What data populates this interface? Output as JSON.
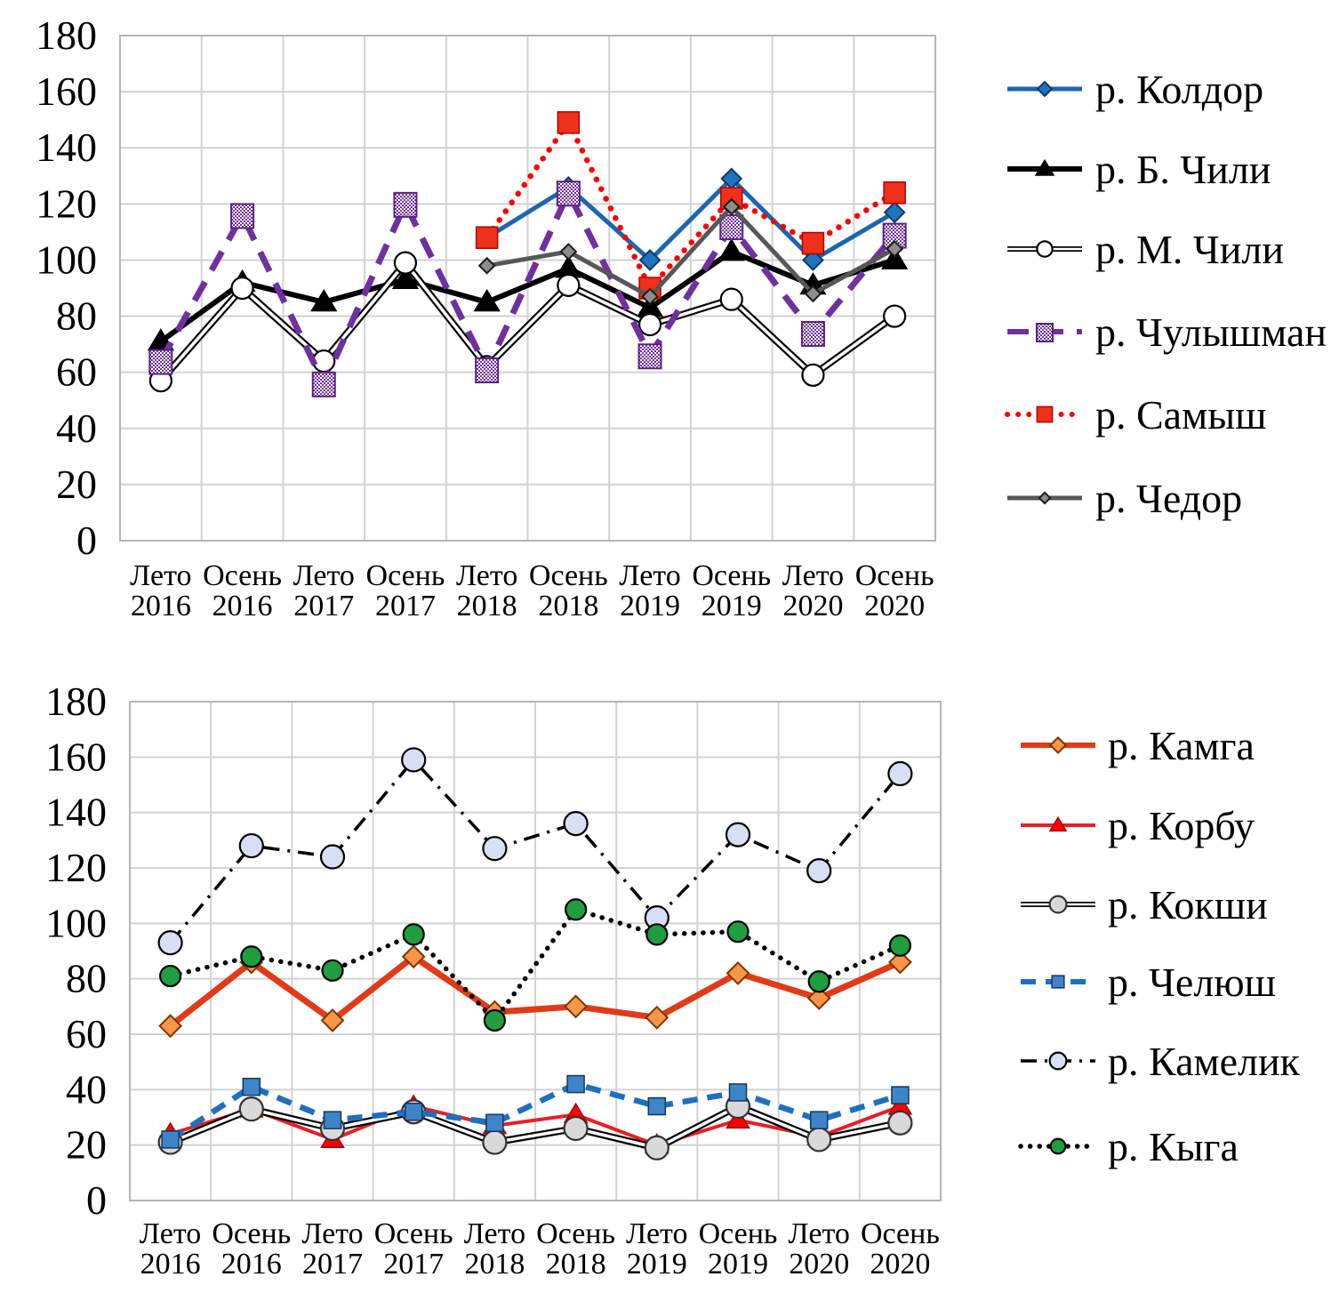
{
  "figure": {
    "background": "#FFFFFF",
    "text_color": "#000000",
    "grid_color": "#D2D2D2",
    "axis_color": "#B5B5B5"
  },
  "chart_data": [
    {
      "type": "line",
      "title": "",
      "xlabel": "",
      "ylabel": "",
      "ylim": [
        0,
        180
      ],
      "ytick_step": 20,
      "yticks": [
        "0",
        "20",
        "40",
        "60",
        "80",
        "100",
        "120",
        "140",
        "160",
        "180"
      ],
      "grid": true,
      "legend_position": "right",
      "categories": [
        {
          "season": "Лето",
          "year": "2016"
        },
        {
          "season": "Осень",
          "year": "2016"
        },
        {
          "season": "Лето",
          "year": "2017"
        },
        {
          "season": "Осень",
          "year": "2017"
        },
        {
          "season": "Лето",
          "year": "2018"
        },
        {
          "season": "Осень",
          "year": "2018"
        },
        {
          "season": "Лето",
          "year": "2019"
        },
        {
          "season": "Осень",
          "year": "2019"
        },
        {
          "season": "Лето",
          "year": "2020"
        },
        {
          "season": "Осень",
          "year": "2020"
        }
      ],
      "series": [
        {
          "name": "р. Колдор",
          "color": "#1A66B3",
          "line_style": "solid",
          "line_width": 5,
          "marker": "diamond",
          "marker_fill": "#1F73C0",
          "marker_edge": "#0D3A66",
          "marker_size": 22,
          "values": [
            null,
            null,
            null,
            null,
            108,
            126,
            100,
            129,
            100,
            117
          ]
        },
        {
          "name": "р. Б. Чили",
          "color": "#000000",
          "line_style": "solid",
          "line_width": 6,
          "marker": "triangle",
          "marker_fill": "#000000",
          "marker_edge": "#000000",
          "marker_size": 23,
          "values": [
            71,
            92,
            85,
            93,
            85,
            97,
            83,
            103,
            91,
            100
          ]
        },
        {
          "name": "р. М. Чили",
          "color": "#000000",
          "line_style": "double",
          "line_width": 8,
          "marker": "circle",
          "marker_fill": "#FFFFFF",
          "marker_edge": "#000000",
          "marker_size": 24,
          "values": [
            57,
            90,
            64,
            99,
            62,
            91,
            77,
            86,
            59,
            80
          ]
        },
        {
          "name": "р. Чулышман",
          "color": "#7030A0",
          "line_style": "dashed-lg",
          "line_width": 7,
          "marker": "square-pattern",
          "marker_fill": "#7030A0",
          "marker_edge": "#5B2182",
          "marker_size": 25,
          "values": [
            64,
            116,
            56,
            120,
            61,
            124,
            66,
            112,
            74,
            109
          ]
        },
        {
          "name": "р. Самыш",
          "color": "#FF0000",
          "line_style": "dotted-round",
          "line_width": 6.5,
          "marker": "square",
          "marker_fill": "#EE3118",
          "marker_edge": "#B30000",
          "marker_size": 24,
          "values": [
            null,
            null,
            null,
            null,
            108,
            149,
            90,
            122,
            106,
            124
          ]
        },
        {
          "name": "р. Чедор",
          "color": "#575757",
          "line_style": "solid",
          "line_width": 5,
          "marker": "diamond",
          "marker_fill": "#8C8C8C",
          "marker_edge": "#1A1A1A",
          "marker_size": 17,
          "values": [
            null,
            null,
            null,
            null,
            98,
            103,
            87,
            119,
            88,
            104
          ]
        }
      ]
    },
    {
      "type": "line",
      "title": "",
      "xlabel": "",
      "ylabel": "",
      "ylim": [
        0,
        180
      ],
      "ytick_step": 20,
      "yticks": [
        "0",
        "20",
        "40",
        "60",
        "80",
        "100",
        "120",
        "140",
        "160",
        "180"
      ],
      "grid": true,
      "legend_position": "right",
      "categories": [
        {
          "season": "Лето",
          "year": "2016"
        },
        {
          "season": "Осень",
          "year": "2016"
        },
        {
          "season": "Лето",
          "year": "2017"
        },
        {
          "season": "Осень",
          "year": "2017"
        },
        {
          "season": "Лето",
          "year": "2018"
        },
        {
          "season": "Осень",
          "year": "2018"
        },
        {
          "season": "Лето",
          "year": "2019"
        },
        {
          "season": "Осень",
          "year": "2019"
        },
        {
          "season": "Лето",
          "year": "2020"
        },
        {
          "season": "Осень",
          "year": "2020"
        }
      ],
      "series": [
        {
          "name": "р. Камга",
          "color": "#E23A17",
          "line_style": "solid",
          "line_width": 7,
          "marker": "diamond",
          "marker_fill": "#F79646",
          "marker_edge": "#7F3300",
          "marker_size": 24,
          "values": [
            63,
            86,
            65,
            88,
            68,
            70,
            66,
            82,
            73,
            86
          ]
        },
        {
          "name": "р. Корбу",
          "color": "#EC1C24",
          "line_style": "solid",
          "line_width": 4,
          "marker": "triangle",
          "marker_fill": "#FF0000",
          "marker_edge": "#9E0B0F",
          "marker_size": 21,
          "values": [
            24,
            33,
            22,
            34,
            27,
            31,
            20,
            29,
            23,
            34
          ]
        },
        {
          "name": "р. Кокши",
          "color": "#000000",
          "line_style": "double",
          "line_width": 8,
          "marker": "circle",
          "marker_fill": "#D9D9D9",
          "marker_edge": "#333333",
          "marker_size": 26,
          "values": [
            21,
            33,
            26,
            32,
            21,
            26,
            19,
            34,
            22,
            28
          ]
        },
        {
          "name": "р. Челюш",
          "color": "#1F6FBF",
          "line_style": "dashed-md",
          "line_width": 6.5,
          "marker": "square",
          "marker_fill": "#3D85C8",
          "marker_edge": "#17365D",
          "marker_size": 19,
          "values": [
            22,
            41,
            29,
            32,
            28,
            42,
            34,
            39,
            29,
            38
          ]
        },
        {
          "name": "р. Камелик",
          "color": "#000000",
          "line_style": "dashdot",
          "line_width": 3.5,
          "marker": "circle",
          "marker_fill": "#D8DEF3",
          "marker_edge": "#000000",
          "marker_size": 26,
          "values": [
            93,
            128,
            124,
            159,
            127,
            136,
            102,
            132,
            119,
            154
          ]
        },
        {
          "name": "р. Кыга",
          "color": "#000000",
          "line_style": "dotted-sm",
          "line_width": 5.5,
          "marker": "circle",
          "marker_fill": "#1F9E3F",
          "marker_edge": "#000000",
          "marker_size": 23,
          "values": [
            81,
            88,
            83,
            96,
            65,
            105,
            96,
            97,
            79,
            92
          ]
        }
      ]
    }
  ]
}
